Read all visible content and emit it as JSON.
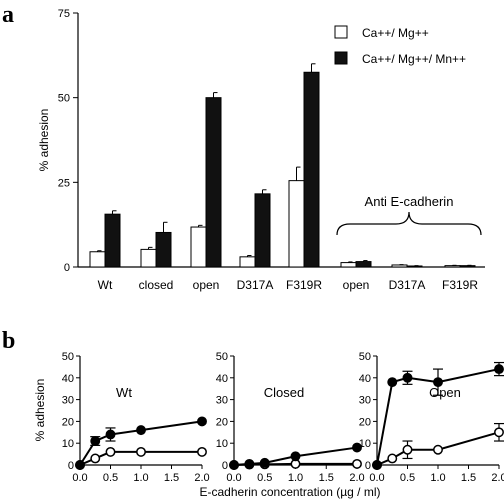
{
  "figure": {
    "label_a": "a",
    "label_b": "b"
  },
  "chart_data": [
    {
      "type": "bar",
      "panel": "a",
      "ylabel": "% adhesion",
      "ylim": [
        0,
        75
      ],
      "yticks": [
        0,
        25,
        50,
        75
      ],
      "categories": [
        "Wt",
        "closed",
        "open",
        "D317A",
        "F319R",
        "open",
        "D317A",
        "F319R"
      ],
      "series": [
        {
          "name": "Ca++/ Mg++",
          "fill": "#ffffff",
          "values": [
            4.5,
            5.2,
            11.8,
            3.0,
            25.5,
            1.3,
            0.6,
            0.4
          ],
          "errors": [
            0.3,
            0.6,
            0.5,
            0.4,
            4.0,
            0.2,
            0.1,
            0.1
          ]
        },
        {
          "name": "Ca++/ Mg++/ Mn++",
          "fill": "#111111",
          "values": [
            15.6,
            10.2,
            50.0,
            21.6,
            57.5,
            1.6,
            0.3,
            0.4
          ],
          "errors": [
            1.0,
            3.0,
            1.5,
            1.2,
            2.5,
            0.3,
            0.1,
            0.1
          ]
        }
      ],
      "legend": [
        "Ca++/ Mg++",
        "Ca++/ Mg++/ Mn++"
      ],
      "legend_position": "top-right",
      "annotation": "Anti E-cadherin"
    },
    {
      "type": "line",
      "panel": "b",
      "title": "Wt",
      "xlabel": "E-cadherin concentration (µg / ml)",
      "ylabel": "% adhesion",
      "ylim": [
        0,
        50
      ],
      "xlim": [
        0,
        2
      ],
      "yticks": [
        0,
        10,
        20,
        30,
        40,
        50
      ],
      "xticks": [
        "0.0",
        "0.5",
        "1.0",
        "1.5",
        "2.0"
      ],
      "x": [
        0,
        0.25,
        0.5,
        1.0,
        2.0
      ],
      "series": [
        {
          "marker": "filled",
          "values": [
            0,
            11,
            14,
            16,
            20
          ],
          "errors": [
            0,
            2,
            3,
            0,
            0
          ]
        },
        {
          "marker": "open",
          "values": [
            0,
            3,
            6,
            6,
            6
          ],
          "errors": [
            0,
            0,
            0,
            0,
            0
          ]
        }
      ]
    },
    {
      "type": "line",
      "panel": "b",
      "title": "Closed",
      "ylim": [
        0,
        50
      ],
      "xlim": [
        0,
        2
      ],
      "yticks": [
        0,
        10,
        20,
        30,
        40,
        50
      ],
      "xticks": [
        "0.0",
        "0.5",
        "1.0",
        "1.5",
        "2.0"
      ],
      "x": [
        0,
        0.25,
        0.5,
        1.0,
        2.0
      ],
      "series": [
        {
          "marker": "filled",
          "values": [
            0,
            0.5,
            1,
            4,
            8
          ],
          "errors": [
            0,
            0,
            0,
            0,
            0
          ]
        },
        {
          "marker": "open",
          "values": [
            0,
            0.2,
            0.3,
            0.5,
            0.5
          ],
          "errors": [
            0,
            0,
            0,
            0,
            0
          ]
        }
      ]
    },
    {
      "type": "line",
      "panel": "b",
      "title": "Open",
      "ylim": [
        0,
        50
      ],
      "xlim": [
        0,
        2
      ],
      "yticks": [
        0,
        10,
        20,
        30,
        40,
        50
      ],
      "xticks": [
        "0.0",
        "0.5",
        "1.0",
        "1.5",
        "2.0"
      ],
      "x": [
        0,
        0.25,
        0.5,
        1.0,
        2.0
      ],
      "series": [
        {
          "marker": "filled",
          "values": [
            0,
            38,
            40,
            38,
            44
          ],
          "errors": [
            0,
            0,
            3,
            6,
            3
          ]
        },
        {
          "marker": "open",
          "values": [
            0,
            3,
            7,
            7,
            15
          ],
          "errors": [
            0,
            0,
            4,
            0,
            4
          ]
        }
      ]
    }
  ]
}
